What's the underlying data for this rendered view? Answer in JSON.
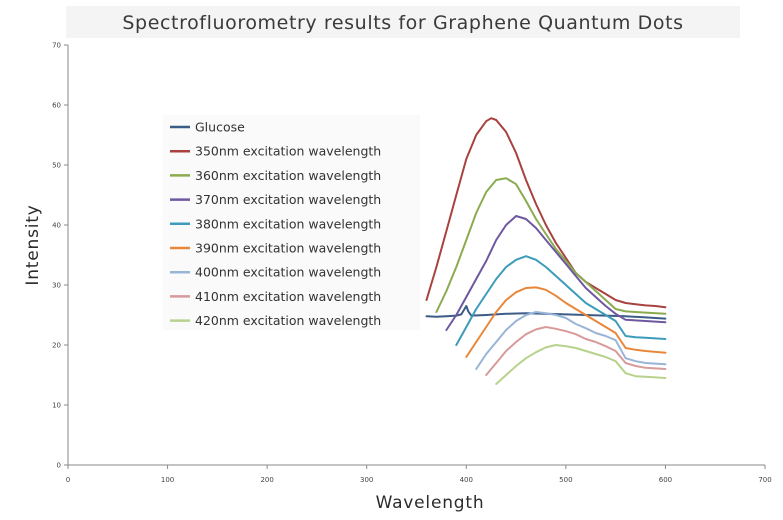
{
  "chart_data": {
    "type": "line",
    "title": "Spectrofluorometry results for Graphene Quantum Dots",
    "xlabel": "Wavelength",
    "ylabel": "Intensity",
    "xlim": [
      0,
      700
    ],
    "ylim": [
      0,
      70
    ],
    "xticks": [
      "0",
      "100",
      "200",
      "300",
      "400",
      "500",
      "600",
      "700"
    ],
    "yticks": [
      "0",
      "10",
      "20",
      "30",
      "40",
      "50",
      "60",
      "70"
    ],
    "grid": false,
    "legend_position": "upper-left",
    "series": [
      {
        "name": "Glucose",
        "color": "#3b5c86",
        "points": [
          [
            360,
            24.8
          ],
          [
            370,
            24.7
          ],
          [
            380,
            24.8
          ],
          [
            390,
            24.9
          ],
          [
            395,
            25.1
          ],
          [
            400,
            26.5
          ],
          [
            402,
            25.6
          ],
          [
            405,
            24.9
          ],
          [
            420,
            25.0
          ],
          [
            440,
            25.2
          ],
          [
            460,
            25.3
          ],
          [
            480,
            25.2
          ],
          [
            500,
            25.1
          ],
          [
            520,
            25.0
          ],
          [
            540,
            24.9
          ],
          [
            560,
            24.8
          ],
          [
            580,
            24.6
          ],
          [
            600,
            24.4
          ]
        ]
      },
      {
        "name": "350nm excitation wavelength",
        "color": "#a8423f",
        "points": [
          [
            360,
            27.5
          ],
          [
            370,
            33
          ],
          [
            380,
            39
          ],
          [
            390,
            45
          ],
          [
            400,
            51
          ],
          [
            410,
            55
          ],
          [
            420,
            57.3
          ],
          [
            425,
            57.8
          ],
          [
            430,
            57.5
          ],
          [
            440,
            55.5
          ],
          [
            450,
            52
          ],
          [
            460,
            47.5
          ],
          [
            470,
            43.5
          ],
          [
            480,
            40
          ],
          [
            490,
            37
          ],
          [
            500,
            34.5
          ],
          [
            510,
            32
          ],
          [
            520,
            30.5
          ],
          [
            530,
            29.5
          ],
          [
            540,
            28.5
          ],
          [
            550,
            27.5
          ],
          [
            560,
            27
          ],
          [
            570,
            26.8
          ],
          [
            580,
            26.6
          ],
          [
            590,
            26.5
          ],
          [
            600,
            26.3
          ]
        ]
      },
      {
        "name": "360nm excitation wavelength",
        "color": "#8aab4f",
        "points": [
          [
            370,
            25.5
          ],
          [
            380,
            29
          ],
          [
            390,
            33
          ],
          [
            400,
            37.5
          ],
          [
            410,
            42
          ],
          [
            420,
            45.5
          ],
          [
            430,
            47.5
          ],
          [
            440,
            47.8
          ],
          [
            450,
            46.8
          ],
          [
            460,
            44
          ],
          [
            470,
            41
          ],
          [
            480,
            38.5
          ],
          [
            490,
            36
          ],
          [
            500,
            34
          ],
          [
            510,
            32
          ],
          [
            520,
            30.5
          ],
          [
            530,
            29
          ],
          [
            540,
            27.5
          ],
          [
            550,
            26
          ],
          [
            560,
            25.6
          ],
          [
            580,
            25.4
          ],
          [
            600,
            25.2
          ]
        ]
      },
      {
        "name": "370nm excitation wavelength",
        "color": "#6e58a0",
        "points": [
          [
            380,
            22.5
          ],
          [
            390,
            25
          ],
          [
            400,
            28
          ],
          [
            410,
            31
          ],
          [
            420,
            34
          ],
          [
            430,
            37.5
          ],
          [
            440,
            40
          ],
          [
            450,
            41.5
          ],
          [
            460,
            41
          ],
          [
            470,
            39.5
          ],
          [
            480,
            37.5
          ],
          [
            490,
            35.5
          ],
          [
            500,
            33.5
          ],
          [
            510,
            31.5
          ],
          [
            520,
            29.5
          ],
          [
            530,
            28
          ],
          [
            540,
            26.5
          ],
          [
            550,
            25.2
          ],
          [
            560,
            24.2
          ],
          [
            580,
            24
          ],
          [
            600,
            23.8
          ]
        ]
      },
      {
        "name": "380nm excitation wavelength",
        "color": "#3c9cba",
        "points": [
          [
            390,
            20
          ],
          [
            400,
            23
          ],
          [
            410,
            26
          ],
          [
            420,
            28.5
          ],
          [
            430,
            31
          ],
          [
            440,
            33
          ],
          [
            450,
            34.2
          ],
          [
            460,
            34.8
          ],
          [
            470,
            34.2
          ],
          [
            480,
            33
          ],
          [
            490,
            31.5
          ],
          [
            500,
            30
          ],
          [
            510,
            28.5
          ],
          [
            520,
            27
          ],
          [
            530,
            26
          ],
          [
            540,
            25
          ],
          [
            550,
            24
          ],
          [
            560,
            21.5
          ],
          [
            570,
            21.3
          ],
          [
            580,
            21.2
          ],
          [
            600,
            21
          ]
        ]
      },
      {
        "name": "390nm excitation wavelength",
        "color": "#e8873a",
        "points": [
          [
            400,
            18
          ],
          [
            410,
            20.5
          ],
          [
            420,
            23
          ],
          [
            430,
            25.5
          ],
          [
            440,
            27.5
          ],
          [
            450,
            28.8
          ],
          [
            460,
            29.5
          ],
          [
            470,
            29.6
          ],
          [
            480,
            29.2
          ],
          [
            490,
            28.2
          ],
          [
            500,
            27
          ],
          [
            510,
            26
          ],
          [
            520,
            25
          ],
          [
            530,
            24
          ],
          [
            540,
            23
          ],
          [
            550,
            22
          ],
          [
            560,
            19.5
          ],
          [
            570,
            19.2
          ],
          [
            580,
            19
          ],
          [
            600,
            18.7
          ]
        ]
      },
      {
        "name": "400nm excitation wavelength",
        "color": "#98b4d6",
        "points": [
          [
            410,
            16
          ],
          [
            420,
            18.5
          ],
          [
            430,
            20.5
          ],
          [
            440,
            22.5
          ],
          [
            450,
            24
          ],
          [
            460,
            25
          ],
          [
            470,
            25.5
          ],
          [
            480,
            25.3
          ],
          [
            490,
            25
          ],
          [
            500,
            24.5
          ],
          [
            510,
            23.5
          ],
          [
            520,
            22.8
          ],
          [
            530,
            22
          ],
          [
            540,
            21.5
          ],
          [
            550,
            20.8
          ],
          [
            560,
            17.8
          ],
          [
            570,
            17.3
          ],
          [
            580,
            17
          ],
          [
            600,
            16.8
          ]
        ]
      },
      {
        "name": "410nm excitation wavelength",
        "color": "#d89a9a",
        "points": [
          [
            420,
            15
          ],
          [
            430,
            17
          ],
          [
            440,
            19
          ],
          [
            450,
            20.5
          ],
          [
            460,
            21.8
          ],
          [
            470,
            22.6
          ],
          [
            480,
            23
          ],
          [
            490,
            22.7
          ],
          [
            500,
            22.3
          ],
          [
            510,
            21.8
          ],
          [
            520,
            21
          ],
          [
            530,
            20.5
          ],
          [
            540,
            19.8
          ],
          [
            550,
            19
          ],
          [
            560,
            17
          ],
          [
            570,
            16.5
          ],
          [
            580,
            16.2
          ],
          [
            600,
            16
          ]
        ]
      },
      {
        "name": "420nm excitation wavelength",
        "color": "#b7d28c",
        "points": [
          [
            430,
            13.5
          ],
          [
            440,
            15
          ],
          [
            450,
            16.5
          ],
          [
            460,
            17.8
          ],
          [
            470,
            18.8
          ],
          [
            480,
            19.6
          ],
          [
            490,
            20
          ],
          [
            500,
            19.8
          ],
          [
            510,
            19.5
          ],
          [
            520,
            19
          ],
          [
            530,
            18.5
          ],
          [
            540,
            18
          ],
          [
            550,
            17.3
          ],
          [
            560,
            15.3
          ],
          [
            570,
            14.8
          ],
          [
            580,
            14.7
          ],
          [
            600,
            14.5
          ]
        ]
      }
    ]
  }
}
